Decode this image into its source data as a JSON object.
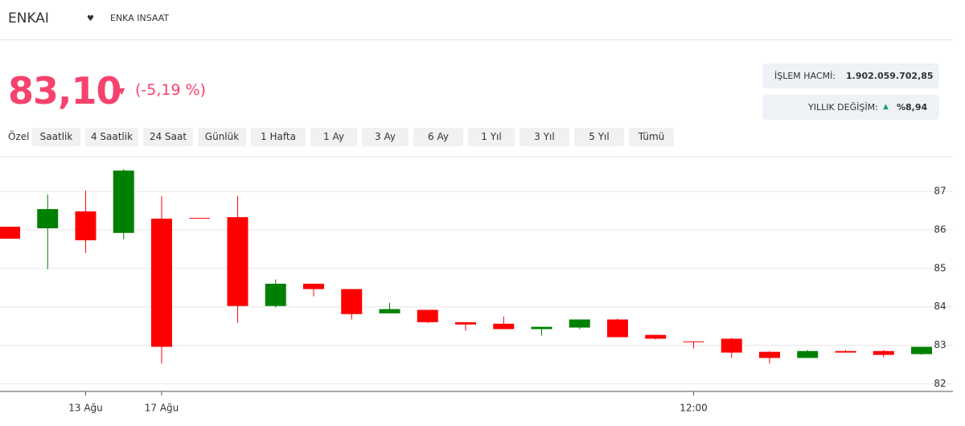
{
  "header": {
    "symbol": "ENKAI",
    "name": "ENKA INSAAT"
  },
  "price": {
    "last": "83,10",
    "change": "(-5,19 %)"
  },
  "stats": [
    {
      "label": "İŞLEM HACMİ:",
      "value": "1.902.059.702,85"
    },
    {
      "label": "YILLIK DEĞİŞİM:",
      "value": "%8,94"
    }
  ],
  "tabs": [
    "Özel",
    "Saatlik",
    "4 Saatlik",
    "24 Saat",
    "Günlük",
    "1 Hafta",
    "1 Ay",
    "3 Ay",
    "6 Ay",
    "1 Yıl",
    "3 Yıl",
    "5 Yıl",
    "Tümü"
  ],
  "chart_data": {
    "type": "candlestick",
    "categories": [
      null,
      null,
      "13 Ağu",
      null,
      "17 Ağu",
      null,
      null,
      null,
      null,
      null,
      null,
      null,
      null,
      null,
      null,
      null,
      null,
      null,
      "12:00",
      null,
      null,
      null,
      null,
      null,
      null
    ],
    "open": [
      86.08,
      86.04,
      86.48,
      85.92,
      86.29,
      86.31,
      86.33,
      84.02,
      84.6,
      84.46,
      83.83,
      83.92,
      83.6,
      83.56,
      83.42,
      83.46,
      83.67,
      83.27,
      83.1,
      83.17,
      82.83,
      82.67,
      82.85,
      82.85,
      82.77
    ],
    "high": [
      86.08,
      86.92,
      87.02,
      87.58,
      86.88,
      86.31,
      86.88,
      84.71,
      84.6,
      84.46,
      84.1,
      83.92,
      83.6,
      83.75,
      83.48,
      83.67,
      83.69,
      83.27,
      83.1,
      83.19,
      82.85,
      82.88,
      82.88,
      82.88,
      82.96
    ],
    "low": [
      85.77,
      84.98,
      85.4,
      85.75,
      82.52,
      86.29,
      83.58,
      83.98,
      84.27,
      83.67,
      83.83,
      83.58,
      83.38,
      83.42,
      83.25,
      83.42,
      83.21,
      83.15,
      82.92,
      82.67,
      82.52,
      82.67,
      82.81,
      82.69,
      82.75
    ],
    "close": [
      85.77,
      86.54,
      85.73,
      87.54,
      82.96,
      86.29,
      84.02,
      84.6,
      84.46,
      83.81,
      83.94,
      83.6,
      83.54,
      83.42,
      83.48,
      83.67,
      83.21,
      83.17,
      83.08,
      82.81,
      82.67,
      82.85,
      82.81,
      82.75,
      82.96
    ],
    "up_color": "#008000",
    "down_color": "#ff0000",
    "ylim": [
      81.8,
      87.9
    ],
    "yticks": [
      82,
      83,
      84,
      85,
      86,
      87
    ],
    "grid": true
  }
}
